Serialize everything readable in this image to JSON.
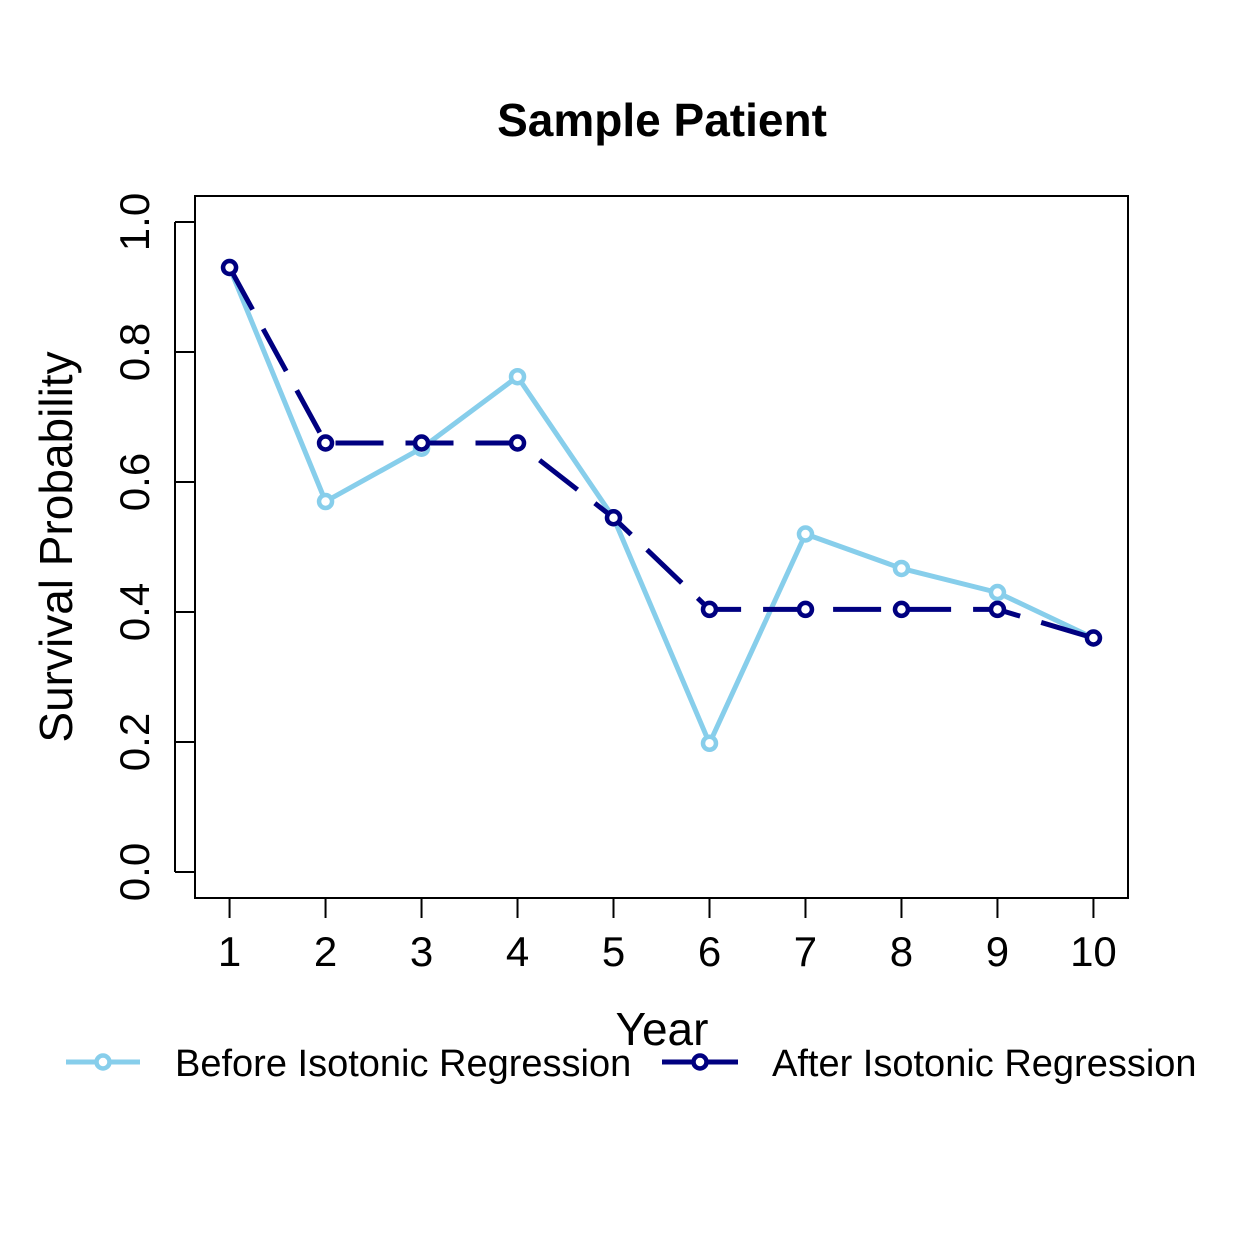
{
  "chart_data": {
    "type": "line",
    "title": "Sample Patient",
    "xlabel": "Year",
    "ylabel": "Survival Probability",
    "x": [
      1,
      2,
      3,
      4,
      5,
      6,
      7,
      8,
      9,
      10
    ],
    "xticks": [
      "1",
      "2",
      "3",
      "4",
      "5",
      "6",
      "7",
      "8",
      "9",
      "10"
    ],
    "yticks": [
      "0.0",
      "0.2",
      "0.4",
      "0.6",
      "0.8",
      "1.0"
    ],
    "ytick_values": [
      0,
      0.2,
      0.4,
      0.6,
      0.8,
      1.0
    ],
    "xlim": [
      0.64,
      10.36
    ],
    "ylim": [
      -0.04,
      1.04
    ],
    "grid": false,
    "legend_position": "bottom",
    "series": [
      {
        "name": "Before Isotonic Regression",
        "color": "#87CEEB",
        "values": [
          0.93,
          0.57,
          0.652,
          0.762,
          0.545,
          0.198,
          0.52,
          0.467,
          0.43,
          0.36
        ]
      },
      {
        "name": "After Isotonic Regression",
        "color": "#000080",
        "values": [
          0.93,
          0.66,
          0.66,
          0.66,
          0.545,
          0.404,
          0.404,
          0.404,
          0.404,
          0.36
        ]
      }
    ]
  }
}
